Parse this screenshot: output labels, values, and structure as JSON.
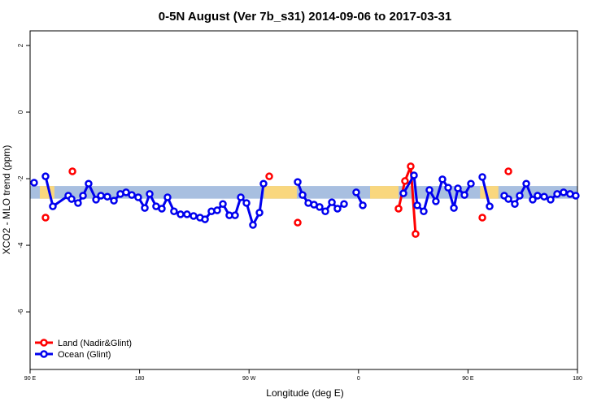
{
  "chart_data": {
    "type": "line",
    "title": "0-5N August (Ver 7b_s31)   2014-09-06 to 2017-03-31",
    "x_label": "Longitude (deg E)",
    "y_label": "XCO2 - MLO trend (ppm)",
    "xlim": [
      90,
      540
    ],
    "ylim": [
      -7.73,
      2.44
    ],
    "xticks": [
      {
        "value": 90,
        "label": "90 E"
      },
      180,
      {
        "value": 270,
        "label": "90 W"
      },
      {
        "value": 360,
        "label": "0"
      },
      {
        "value": 450,
        "label": "90 E"
      },
      {
        "value": 540,
        "label": "180"
      }
    ],
    "yticks": [
      -6,
      -4,
      -2,
      0,
      2
    ],
    "band": {
      "range": [
        -2.6,
        -2.22
      ],
      "color": "#a8bfe0",
      "highlight_color": "#f9d77e",
      "highlights": [
        [
          98,
          110
        ],
        [
          282.5,
          309.3
        ],
        [
          369.5,
          392.9
        ],
        [
          460,
          475
        ]
      ]
    },
    "legend": "bottom-left",
    "series": [
      {
        "name": "Land (Nadir&Glint)",
        "color": "#ff0000",
        "x": [
          102.7,
          null,
          124.8,
          null,
          286.6,
          null,
          310.0,
          null,
          392.9,
          398.2,
          402.9,
          406.9,
          null,
          461.8,
          null,
          483.2
        ],
        "values": [
          -3.17,
          null,
          -1.78,
          null,
          -1.93,
          null,
          -3.32,
          null,
          -2.9,
          -2.07,
          -1.63,
          -3.66,
          null,
          -3.17,
          null,
          -1.78
        ]
      },
      {
        "name": "Ocean (Glint)",
        "color": "#0000ee",
        "x": [
          93.3,
          null,
          102.7,
          108.7,
          121.4,
          124.1,
          129.4,
          133.5,
          138.1,
          144.2,
          148.2,
          153.5,
          158.9,
          164.2,
          168.9,
          173.6,
          178.9,
          184.3,
          188.3,
          193.6,
          198.3,
          203.0,
          208.3,
          213.7,
          219.0,
          224.4,
          229.7,
          233.8,
          239.1,
          243.8,
          248.5,
          253.8,
          258.5,
          263.2,
          267.9,
          273.2,
          278.6,
          281.9,
          null,
          310.0,
          314.0,
          318.7,
          323.4,
          328.0,
          332.7,
          338.1,
          342.7,
          348.1,
          null,
          358.1,
          363.5,
          null,
          396.9,
          405.6,
          408.3,
          413.6,
          418.3,
          423.6,
          429.0,
          433.7,
          438.4,
          441.7,
          447.1,
          452.4,
          null,
          461.8,
          467.8,
          null,
          479.8,
          483.2,
          488.5,
          492.5,
          497.9,
          503.2,
          507.2,
          512.6,
          517.9,
          523.3,
          528.6,
          533.9,
          538.6
        ],
        "values": [
          -2.12,
          null,
          -1.93,
          -2.83,
          -2.51,
          -2.61,
          -2.73,
          -2.51,
          -2.15,
          -2.63,
          -2.51,
          -2.54,
          -2.66,
          -2.46,
          -2.41,
          -2.49,
          -2.56,
          -2.88,
          -2.46,
          -2.83,
          -2.9,
          -2.56,
          -2.98,
          -3.07,
          -3.07,
          -3.12,
          -3.17,
          -3.22,
          -2.98,
          -2.95,
          -2.76,
          -3.1,
          -3.1,
          -2.56,
          -2.73,
          -3.39,
          -3.02,
          -2.15,
          null,
          -2.1,
          -2.49,
          -2.73,
          -2.78,
          -2.85,
          -2.98,
          -2.71,
          -2.9,
          -2.76,
          null,
          -2.41,
          -2.8,
          null,
          -2.44,
          -1.9,
          -2.8,
          -2.98,
          -2.34,
          -2.68,
          -2.02,
          -2.27,
          -2.88,
          -2.29,
          -2.49,
          -2.15,
          null,
          -1.95,
          -2.83,
          null,
          -2.51,
          -2.61,
          -2.76,
          -2.51,
          -2.15,
          -2.63,
          -2.51,
          -2.54,
          -2.63,
          -2.46,
          -2.41,
          -2.46,
          -2.51
        ]
      }
    ]
  }
}
